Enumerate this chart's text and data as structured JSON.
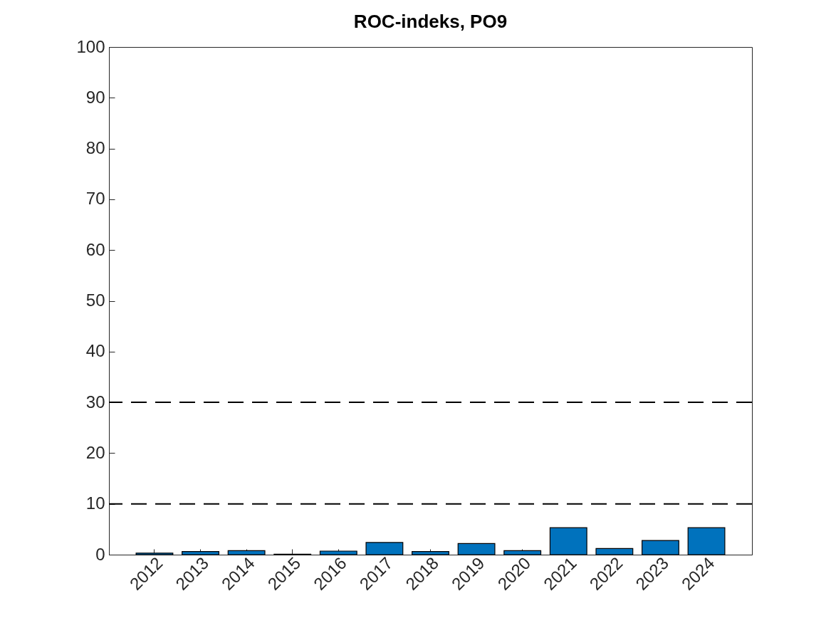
{
  "chart_data": {
    "type": "bar",
    "title": "ROC-indeks, PO9",
    "categories": [
      "2012",
      "2013",
      "2014",
      "2015",
      "2016",
      "2017",
      "2018",
      "2019",
      "2020",
      "2021",
      "2022",
      "2023",
      "2024"
    ],
    "values": [
      0.3,
      0.6,
      0.8,
      0.1,
      0.7,
      2.4,
      0.6,
      2.2,
      0.8,
      5.3,
      1.2,
      2.8,
      5.3
    ],
    "color": "#0072bd",
    "ylim": [
      0,
      100
    ],
    "yticks": [
      0,
      10,
      20,
      30,
      40,
      50,
      60,
      70,
      80,
      90,
      100
    ],
    "ref_lines": [
      {
        "axis": "y",
        "value": 10,
        "color": "#000000",
        "line_style": "dashed"
      },
      {
        "axis": "y",
        "value": 30,
        "color": "#000000",
        "line_style": "dashed"
      }
    ],
    "grid": false
  }
}
